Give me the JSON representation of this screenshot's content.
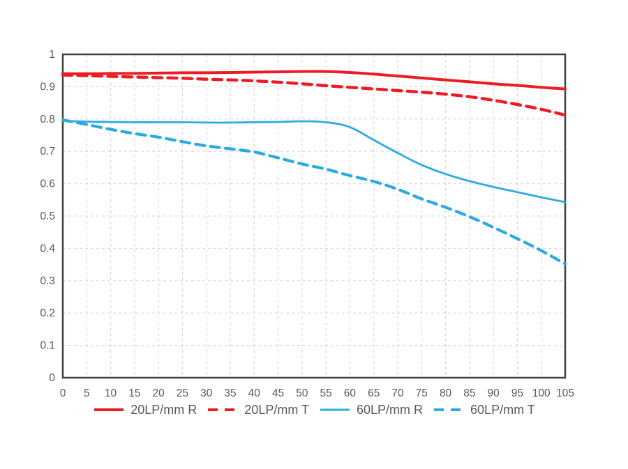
{
  "chart_data": {
    "type": "line",
    "title": "",
    "xlabel": "",
    "ylabel": "",
    "xlim": [
      0,
      105
    ],
    "ylim": [
      0,
      1
    ],
    "x_ticks": [
      0,
      5,
      10,
      15,
      20,
      25,
      30,
      35,
      40,
      45,
      50,
      55,
      60,
      65,
      70,
      75,
      80,
      85,
      90,
      95,
      100,
      105
    ],
    "y_ticks": [
      0,
      0.1,
      0.2,
      0.3,
      0.4,
      0.5,
      0.6,
      0.7,
      0.8,
      0.9,
      1
    ],
    "y_tick_labels": [
      "0",
      "0.1",
      "0.2",
      "0.3",
      "0.4",
      "0.5",
      "0.6",
      "0.7",
      "0.8",
      "0.9",
      "1"
    ],
    "grid": "dashed-both-axes",
    "legend_position": "bottom-center",
    "x": [
      0,
      5,
      10,
      15,
      20,
      25,
      30,
      35,
      40,
      45,
      50,
      55,
      60,
      65,
      70,
      75,
      80,
      85,
      90,
      95,
      100,
      105
    ],
    "series": [
      {
        "name": "20LP/mm R",
        "color": "#ed1c24",
        "style": "solid",
        "values": [
          0.94,
          0.94,
          0.941,
          0.941,
          0.942,
          0.943,
          0.943,
          0.944,
          0.945,
          0.946,
          0.947,
          0.947,
          0.944,
          0.939,
          0.933,
          0.927,
          0.921,
          0.915,
          0.909,
          0.904,
          0.898,
          0.893
        ]
      },
      {
        "name": "20LP/mm T",
        "color": "#ed1c24",
        "style": "dashed",
        "values": [
          0.936,
          0.934,
          0.932,
          0.93,
          0.928,
          0.926,
          0.923,
          0.921,
          0.918,
          0.914,
          0.909,
          0.903,
          0.898,
          0.893,
          0.888,
          0.883,
          0.877,
          0.869,
          0.858,
          0.845,
          0.83,
          0.812
        ]
      },
      {
        "name": "60LP/mm R",
        "color": "#29abe2",
        "style": "solid",
        "values": [
          0.795,
          0.792,
          0.791,
          0.79,
          0.79,
          0.79,
          0.789,
          0.789,
          0.79,
          0.791,
          0.793,
          0.79,
          0.775,
          0.735,
          0.695,
          0.658,
          0.63,
          0.608,
          0.59,
          0.574,
          0.558,
          0.543
        ]
      },
      {
        "name": "60LP/mm T",
        "color": "#29abe2",
        "style": "dashed",
        "values": [
          0.797,
          0.783,
          0.768,
          0.755,
          0.744,
          0.73,
          0.717,
          0.708,
          0.698,
          0.68,
          0.661,
          0.645,
          0.625,
          0.607,
          0.583,
          0.553,
          0.527,
          0.498,
          0.465,
          0.43,
          0.393,
          0.352
        ]
      }
    ],
    "colors": {
      "background": "#ffffff",
      "grid": "#d9d9d9",
      "axis_border": "#404040",
      "tick_text": "#595959",
      "legend_text": "#595959",
      "red": "#ed1c24",
      "blue": "#29abe2"
    }
  }
}
